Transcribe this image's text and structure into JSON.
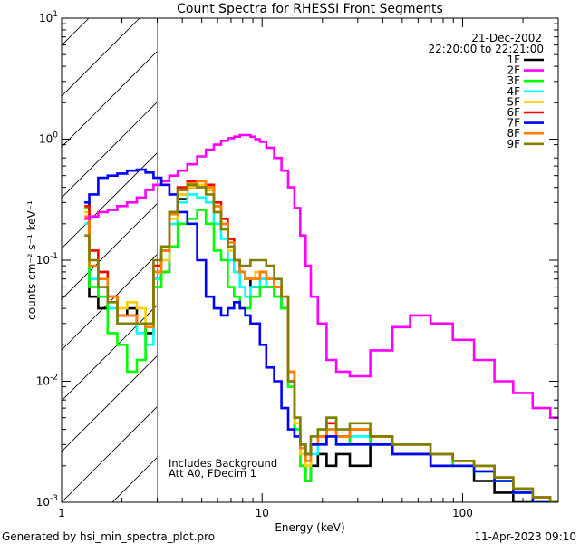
{
  "chart_data": {
    "type": "line",
    "title": "Count Spectra for RHESSI Front Segments",
    "xlabel": "Energy (keV)",
    "ylabel": "counts cm⁻² s⁻¹ keV⁻¹",
    "xscale": "log",
    "yscale": "log",
    "xlim": [
      1,
      300
    ],
    "ylim": [
      0.001,
      10
    ],
    "xticks": [
      {
        "value": 1,
        "label": "1"
      },
      {
        "value": 10,
        "label": "10"
      },
      {
        "value": 100,
        "label": "100"
      }
    ],
    "yticks": [
      {
        "value": 0.001,
        "base": "10",
        "exp": "-3"
      },
      {
        "value": 0.01,
        "base": "10",
        "exp": "-2"
      },
      {
        "value": 0.1,
        "base": "10",
        "exp": "-1"
      },
      {
        "value": 1,
        "base": "10",
        "exp": "0"
      },
      {
        "value": 10,
        "base": "10",
        "exp": "1"
      }
    ],
    "attenuator_region": {
      "from": 1,
      "to": 3
    },
    "legend_header": [
      "21-Dec-2002",
      "22:20:00 to 22:21:00"
    ],
    "annotations": [
      "Includes Background",
      "Att A0, FDecim 1"
    ],
    "series": [
      {
        "name": "1F",
        "color": "#000000",
        "x": [
          1.3,
          1.45,
          1.6,
          1.8,
          2.0,
          2.25,
          2.5,
          2.75,
          3.0,
          3.3,
          3.6,
          4.0,
          4.5,
          5.0,
          5.5,
          6.0,
          6.5,
          7.0,
          7.5,
          8.0,
          8.5,
          9.0,
          9.5,
          10,
          11,
          12,
          13,
          14,
          15,
          16,
          17,
          18,
          20,
          22,
          25,
          30,
          40,
          50,
          60,
          80,
          100,
          130,
          160,
          200,
          250,
          300
        ],
        "y": [
          0.3,
          0.05,
          0.04,
          0.05,
          0.035,
          0.04,
          0.03,
          0.025,
          0.07,
          0.08,
          0.2,
          0.32,
          0.4,
          0.42,
          0.38,
          0.28,
          0.2,
          0.15,
          0.1,
          0.08,
          0.07,
          0.06,
          0.06,
          0.07,
          0.06,
          0.05,
          0.04,
          0.01,
          0.004,
          0.002,
          0.0015,
          0.002,
          0.0025,
          0.002,
          0.0025,
          0.002,
          0.003,
          0.0025,
          0.0025,
          0.002,
          0.002,
          0.0015,
          0.0012,
          0.001,
          0.001,
          0.001
        ]
      },
      {
        "name": "2F",
        "color": "#FF00FF",
        "x": [
          1.3,
          1.45,
          1.6,
          1.8,
          2.0,
          2.25,
          2.5,
          2.75,
          3.0,
          3.3,
          3.6,
          4.0,
          4.5,
          5.0,
          5.5,
          6.0,
          6.5,
          7.0,
          7.5,
          8.0,
          8.5,
          9.0,
          9.5,
          10,
          11,
          12,
          13,
          14,
          15,
          16,
          17,
          18,
          20,
          22,
          25,
          30,
          40,
          50,
          60,
          80,
          100,
          130,
          160,
          200,
          250,
          300
        ],
        "y": [
          0.22,
          0.23,
          0.25,
          0.26,
          0.28,
          0.3,
          0.33,
          0.38,
          0.42,
          0.45,
          0.5,
          0.55,
          0.62,
          0.72,
          0.82,
          0.9,
          0.97,
          1.02,
          1.05,
          1.08,
          1.08,
          1.05,
          1.0,
          0.95,
          0.85,
          0.7,
          0.55,
          0.4,
          0.27,
          0.16,
          0.09,
          0.05,
          0.03,
          0.015,
          0.012,
          0.011,
          0.018,
          0.028,
          0.035,
          0.03,
          0.022,
          0.015,
          0.01,
          0.008,
          0.006,
          0.005
        ]
      },
      {
        "name": "3F",
        "color": "#00FF00",
        "x": [
          1.3,
          1.45,
          1.6,
          1.8,
          2.0,
          2.25,
          2.5,
          2.75,
          3.0,
          3.3,
          3.6,
          4.0,
          4.5,
          5.0,
          5.5,
          6.0,
          6.5,
          7.0,
          7.5,
          8.0,
          8.5,
          9.0,
          9.5,
          10,
          11,
          12,
          13,
          14,
          15,
          16,
          17,
          18,
          20,
          22,
          25,
          30,
          40,
          50,
          60,
          80,
          100,
          130,
          160,
          200,
          250,
          300
        ],
        "y": [
          0.27,
          0.06,
          0.05,
          0.025,
          0.02,
          0.012,
          0.015,
          0.03,
          0.06,
          0.08,
          0.13,
          0.2,
          0.22,
          0.26,
          0.2,
          0.12,
          0.1,
          0.06,
          0.05,
          0.04,
          0.04,
          0.05,
          0.05,
          0.06,
          0.06,
          0.05,
          0.04,
          0.009,
          0.004,
          0.002,
          0.0015,
          0.003,
          0.004,
          0.005,
          0.003,
          0.004,
          0.003,
          0.003,
          0.003,
          0.0025,
          0.002,
          0.0018,
          0.0015,
          0.0012,
          0.001,
          0.001
        ]
      },
      {
        "name": "4F",
        "color": "#00FFFF",
        "x": [
          1.3,
          1.45,
          1.6,
          1.8,
          2.0,
          2.25,
          2.5,
          2.75,
          3.0,
          3.3,
          3.6,
          4.0,
          4.5,
          5.0,
          5.5,
          6.0,
          6.5,
          7.0,
          7.5,
          8.0,
          8.5,
          9.0,
          9.5,
          10,
          11,
          12,
          13,
          14,
          15,
          16,
          17,
          18,
          20,
          22,
          25,
          30,
          40,
          50,
          60,
          80,
          100,
          130,
          160,
          200,
          250,
          300
        ],
        "y": [
          0.2,
          0.07,
          0.05,
          0.04,
          0.03,
          0.03,
          0.025,
          0.02,
          0.07,
          0.1,
          0.2,
          0.3,
          0.35,
          0.33,
          0.3,
          0.2,
          0.15,
          0.1,
          0.08,
          0.06,
          0.05,
          0.06,
          0.06,
          0.07,
          0.06,
          0.05,
          0.04,
          0.01,
          0.004,
          0.002,
          0.002,
          0.0025,
          0.003,
          0.004,
          0.003,
          0.0035,
          0.003,
          0.003,
          0.003,
          0.0025,
          0.002,
          0.0018,
          0.0015,
          0.0012,
          0.001,
          0.001
        ]
      },
      {
        "name": "5F",
        "color": "#FFCC00",
        "x": [
          1.3,
          1.45,
          1.6,
          1.8,
          2.0,
          2.25,
          2.5,
          2.75,
          3.0,
          3.3,
          3.6,
          4.0,
          4.5,
          5.0,
          5.5,
          6.0,
          6.5,
          7.0,
          7.5,
          8.0,
          8.5,
          9.0,
          9.5,
          10,
          11,
          12,
          13,
          14,
          15,
          16,
          17,
          18,
          20,
          22,
          25,
          30,
          40,
          50,
          60,
          80,
          100,
          130,
          160,
          200,
          250,
          300
        ],
        "y": [
          0.25,
          0.1,
          0.08,
          0.05,
          0.04,
          0.045,
          0.04,
          0.03,
          0.08,
          0.1,
          0.22,
          0.35,
          0.4,
          0.42,
          0.38,
          0.25,
          0.18,
          0.12,
          0.1,
          0.08,
          0.07,
          0.07,
          0.08,
          0.08,
          0.07,
          0.06,
          0.05,
          0.01,
          0.0045,
          0.0025,
          0.002,
          0.003,
          0.0035,
          0.004,
          0.0035,
          0.004,
          0.0035,
          0.003,
          0.003,
          0.0025,
          0.0022,
          0.002,
          0.0016,
          0.0013,
          0.0011,
          0.001
        ]
      },
      {
        "name": "6F",
        "color": "#FF0000",
        "x": [
          1.3,
          1.45,
          1.6,
          1.8,
          2.0,
          2.25,
          2.5,
          2.75,
          3.0,
          3.3,
          3.6,
          4.0,
          4.5,
          5.0,
          5.5,
          6.0,
          6.5,
          7.0,
          7.5,
          8.0,
          8.5,
          9.0,
          9.5,
          10,
          11,
          12,
          13,
          14,
          15,
          16,
          17,
          18,
          20,
          22,
          25,
          30,
          40,
          50,
          60,
          80,
          100,
          130,
          160,
          200,
          250,
          300
        ],
        "y": [
          0.28,
          0.12,
          0.08,
          0.05,
          0.035,
          0.035,
          0.03,
          0.03,
          0.09,
          0.12,
          0.25,
          0.4,
          0.45,
          0.45,
          0.42,
          0.3,
          0.22,
          0.15,
          0.1,
          0.08,
          0.07,
          0.07,
          0.07,
          0.08,
          0.07,
          0.06,
          0.05,
          0.012,
          0.005,
          0.003,
          0.0025,
          0.003,
          0.0035,
          0.0045,
          0.0035,
          0.004,
          0.0035,
          0.003,
          0.003,
          0.0025,
          0.0022,
          0.002,
          0.0016,
          0.0013,
          0.0011,
          0.001
        ]
      },
      {
        "name": "7F",
        "color": "#0000FF",
        "x": [
          1.3,
          1.45,
          1.6,
          1.8,
          2.0,
          2.25,
          2.5,
          2.75,
          3.0,
          3.3,
          3.6,
          4.0,
          4.5,
          5.0,
          5.5,
          6.0,
          6.5,
          7.0,
          7.5,
          8.0,
          8.5,
          9.0,
          9.5,
          10,
          11,
          12,
          13,
          14,
          15,
          16,
          17,
          18,
          20,
          22,
          25,
          30,
          40,
          50,
          60,
          80,
          100,
          130,
          160,
          200,
          250,
          300
        ],
        "y": [
          0.3,
          0.35,
          0.48,
          0.5,
          0.52,
          0.55,
          0.56,
          0.53,
          0.48,
          0.42,
          0.35,
          0.25,
          0.2,
          0.1,
          0.05,
          0.04,
          0.035,
          0.04,
          0.045,
          0.04,
          0.035,
          0.03,
          0.03,
          0.02,
          0.013,
          0.01,
          0.006,
          0.004,
          0.0035,
          0.003,
          0.0025,
          0.003,
          0.003,
          0.0035,
          0.003,
          0.003,
          0.003,
          0.0025,
          0.0025,
          0.002,
          0.002,
          0.0018,
          0.0015,
          0.0012,
          0.001,
          0.001
        ]
      },
      {
        "name": "8F",
        "color": "#FF8000",
        "x": [
          1.3,
          1.45,
          1.6,
          1.8,
          2.0,
          2.25,
          2.5,
          2.75,
          3.0,
          3.3,
          3.6,
          4.0,
          4.5,
          5.0,
          5.5,
          6.0,
          6.5,
          7.0,
          7.5,
          8.0,
          8.5,
          9.0,
          9.5,
          10,
          11,
          12,
          13,
          14,
          15,
          16,
          17,
          18,
          20,
          22,
          25,
          30,
          40,
          50,
          60,
          80,
          100,
          130,
          160,
          200,
          250,
          300
        ],
        "y": [
          0.23,
          0.09,
          0.07,
          0.05,
          0.035,
          0.035,
          0.03,
          0.028,
          0.08,
          0.12,
          0.24,
          0.38,
          0.43,
          0.45,
          0.4,
          0.28,
          0.2,
          0.14,
          0.1,
          0.08,
          0.07,
          0.07,
          0.07,
          0.08,
          0.07,
          0.06,
          0.05,
          0.012,
          0.005,
          0.0028,
          0.0022,
          0.003,
          0.0035,
          0.004,
          0.0035,
          0.004,
          0.0035,
          0.003,
          0.003,
          0.0025,
          0.0022,
          0.002,
          0.0016,
          0.0013,
          0.0011,
          0.001
        ]
      },
      {
        "name": "9F",
        "color": "#808000",
        "x": [
          1.3,
          1.45,
          1.6,
          1.8,
          2.0,
          2.25,
          2.5,
          2.75,
          3.0,
          3.3,
          3.6,
          4.0,
          4.5,
          5.0,
          5.5,
          6.0,
          6.5,
          7.0,
          7.5,
          8.0,
          8.5,
          9.0,
          9.5,
          10,
          11,
          12,
          13,
          14,
          15,
          16,
          17,
          18,
          20,
          22,
          25,
          30,
          40,
          50,
          60,
          80,
          100,
          130,
          160,
          200,
          250,
          300
        ],
        "y": [
          0.16,
          0.1,
          0.06,
          0.045,
          0.03,
          0.03,
          0.03,
          0.03,
          0.1,
          0.13,
          0.25,
          0.38,
          0.42,
          0.4,
          0.35,
          0.25,
          0.18,
          0.13,
          0.1,
          0.09,
          0.09,
          0.1,
          0.1,
          0.1,
          0.09,
          0.07,
          0.05,
          0.01,
          0.005,
          0.003,
          0.0025,
          0.0035,
          0.004,
          0.005,
          0.004,
          0.0045,
          0.0035,
          0.003,
          0.003,
          0.0025,
          0.0022,
          0.002,
          0.0016,
          0.0013,
          0.0011,
          0.001
        ]
      }
    ]
  },
  "footer": {
    "left": "Generated by hsi_min_spectra_plot.pro",
    "right": "11-Apr-2023 09:10"
  }
}
